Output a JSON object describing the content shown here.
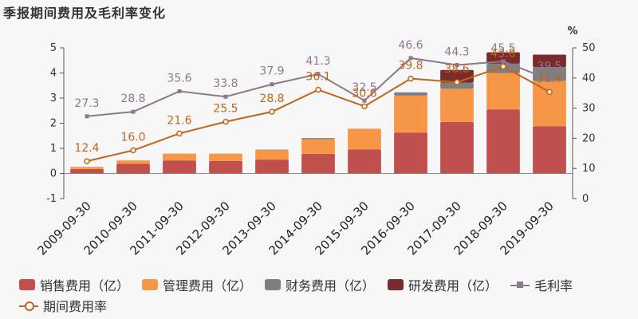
{
  "title": "季报期间费用及毛利率变化",
  "right_axis_unit": "%",
  "colors": {
    "sales": "#c0504d",
    "admin": "#f79646",
    "finance": "#7f7f7f",
    "rd": "#7a2c2c",
    "gross_margin": "#8c7a8c",
    "expense_rate": "#c0651a",
    "gross_label": "#8c7a8c",
    "expense_label": "#c0651a"
  },
  "legend": {
    "sales": "销售费用（亿）",
    "admin": "管理费用（亿）",
    "finance": "财务费用（亿）",
    "rd": "研发费用（亿）",
    "gross_margin": "毛利率",
    "expense_rate": "期间费用率"
  },
  "chart_data": {
    "type": "bar",
    "title": "季报期间费用及毛利率变化",
    "categories": [
      "2009-09-30",
      "2010-09-30",
      "2011-09-30",
      "2012-09-30",
      "2013-09-30",
      "2014-09-30",
      "2015-09-30",
      "2016-09-30",
      "2017-09-30",
      "2018-09-30",
      "2019-09-30"
    ],
    "left_axis": {
      "ylim": [
        -1,
        5
      ],
      "ticks": [
        -1,
        0,
        1,
        2,
        3,
        4,
        5
      ]
    },
    "right_axis": {
      "ylim": [
        0,
        50
      ],
      "ticks": [
        0,
        10,
        20,
        30,
        40,
        50
      ],
      "unit": "%"
    },
    "stacked_series": [
      {
        "name": "销售费用（亿）",
        "key": "sales",
        "values": [
          0.18,
          0.38,
          0.52,
          0.5,
          0.55,
          0.78,
          0.96,
          1.63,
          2.05,
          2.55,
          1.88
        ]
      },
      {
        "name": "管理费用（亿）",
        "key": "admin",
        "values": [
          0.08,
          0.14,
          0.27,
          0.29,
          0.38,
          0.58,
          0.82,
          1.47,
          1.32,
          1.45,
          1.8
        ]
      },
      {
        "name": "财务费用（亿）",
        "key": "finance",
        "values": [
          0.0,
          -0.02,
          0.0,
          0.0,
          0.02,
          0.05,
          0.0,
          0.13,
          0.25,
          0.37,
          0.56
        ]
      },
      {
        "name": "研发费用（亿）",
        "key": "rd",
        "values": [
          0,
          0,
          0,
          0,
          0,
          0,
          0,
          0,
          0.5,
          0.45,
          0.49
        ]
      }
    ],
    "line_series": [
      {
        "name": "毛利率",
        "key": "gross_margin",
        "values": [
          27.3,
          28.8,
          35.6,
          33.8,
          37.9,
          41.3,
          32.5,
          46.6,
          44.3,
          45.5,
          39.5
        ]
      },
      {
        "name": "期间费用率",
        "key": "expense_rate",
        "values": [
          12.4,
          16.0,
          21.6,
          25.5,
          28.8,
          36.1,
          30.6,
          39.8,
          38.6,
          43.8,
          35.4
        ]
      }
    ],
    "data_labels": {
      "gross_margin": [
        "27.3",
        "28.8",
        "35.6",
        "33.8",
        "37.9",
        "41.3",
        "32.5",
        "46.6",
        "44.3",
        "45.5",
        "39.5"
      ],
      "expense_rate": [
        "12.4",
        "16.0",
        "21.6",
        "25.5",
        "28.8",
        "36.1",
        "30.6",
        "39.8",
        "38.6",
        "43.8",
        "35.4"
      ]
    },
    "legend_position": "bottom",
    "grid": false
  }
}
